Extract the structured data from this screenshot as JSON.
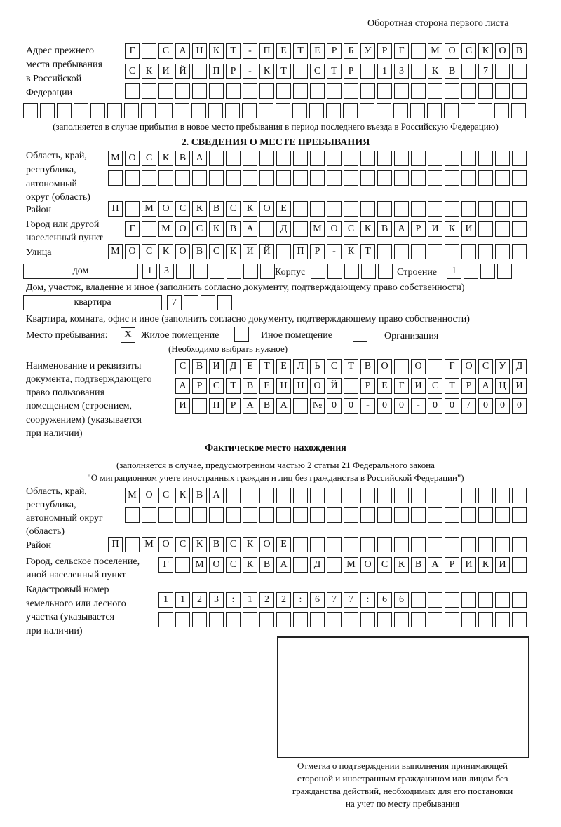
{
  "header": {
    "page_side": "Оборотная сторона первого листа"
  },
  "prev_address": {
    "label": [
      "Адрес прежнего",
      "места пребывания",
      "в Российской",
      "Федерации"
    ],
    "rows": [
      [
        "Г",
        "",
        "С",
        "А",
        "Н",
        "К",
        "Т",
        "-",
        "П",
        "Е",
        "Т",
        "Е",
        "Р",
        "Б",
        "У",
        "Р",
        "Г",
        "",
        "М",
        "О",
        "С",
        "К",
        "О",
        "В"
      ],
      [
        "С",
        "К",
        "И",
        "Й",
        "",
        "П",
        "Р",
        "-",
        "К",
        "Т",
        "",
        "С",
        "Т",
        "Р",
        "",
        "1",
        "3",
        "",
        "К",
        "В",
        "",
        "7",
        "",
        ""
      ],
      [
        "",
        "",
        "",
        "",
        "",
        "",
        "",
        "",
        "",
        "",
        "",
        "",
        "",
        "",
        "",
        "",
        "",
        "",
        "",
        "",
        "",
        "",
        "",
        ""
      ],
      [
        "",
        "",
        "",
        "",
        "",
        "",
        "",
        "",
        "",
        "",
        "",
        "",
        "",
        "",
        "",
        "",
        "",
        "",
        "",
        "",
        "",
        "",
        "",
        "",
        "",
        "",
        "",
        "",
        "",
        ""
      ]
    ],
    "note": "(заполняется в случае прибытия в новое место пребывания в период последнего въезда в Российскую Федерацию)"
  },
  "section2": {
    "title": "2. СВЕДЕНИЯ О МЕСТЕ ПРЕБЫВАНИЯ",
    "region_label": [
      "Область, край,",
      "республика,",
      "автономный",
      "округ (область)"
    ],
    "region_rows": [
      [
        "М",
        "О",
        "С",
        "К",
        "В",
        "А",
        "",
        "",
        "",
        "",
        "",
        "",
        "",
        "",
        "",
        "",
        "",
        "",
        "",
        "",
        "",
        "",
        "",
        "",
        ""
      ],
      [
        "",
        "",
        "",
        "",
        "",
        "",
        "",
        "",
        "",
        "",
        "",
        "",
        "",
        "",
        "",
        "",
        "",
        "",
        "",
        "",
        "",
        "",
        "",
        "",
        ""
      ]
    ],
    "district_label": "Район",
    "district_row": [
      "П",
      "",
      "М",
      "О",
      "С",
      "К",
      "В",
      "С",
      "К",
      "О",
      "Е",
      "",
      "",
      "",
      "",
      "",
      "",
      "",
      "",
      "",
      "",
      "",
      "",
      "",
      ""
    ],
    "city_label": [
      "Город или другой",
      "населенный пункт"
    ],
    "city_row": [
      "Г",
      "",
      "М",
      "О",
      "С",
      "К",
      "В",
      "А",
      "",
      "Д",
      "",
      "М",
      "О",
      "С",
      "К",
      "В",
      "А",
      "Р",
      "И",
      "К",
      "И",
      "",
      "",
      ""
    ],
    "street_label": "Улица",
    "street_row": [
      "М",
      "О",
      "С",
      "К",
      "О",
      "В",
      "С",
      "К",
      "И",
      "Й",
      "",
      "П",
      "Р",
      "-",
      "К",
      "Т",
      "",
      "",
      "",
      "",
      "",
      "",
      "",
      "",
      ""
    ],
    "house_type": "дом",
    "house_row": [
      "1",
      "3",
      "",
      "",
      "",
      "",
      "",
      ""
    ],
    "korpus_label": "Корпус",
    "korpus_row": [
      "",
      "",
      "",
      "",
      ""
    ],
    "building_label": "Строение",
    "building_row": [
      "1",
      "",
      "",
      ""
    ],
    "house_note": "Дом, участок, владение и иное (заполнить согласно документу, подтверждающему право собственности)",
    "apt_type": "квартира",
    "apt_row": [
      "7",
      "",
      "",
      ""
    ],
    "apt_note": "Квартира, комната, офис и иное (заполнить согласно документу, подтверждающему право собственности)",
    "stay_label": "Место пребывания:",
    "stay_options": [
      {
        "mark": "X",
        "label": "Жилое помещение"
      },
      {
        "mark": "",
        "label": "Иное помещение"
      },
      {
        "mark": "",
        "label": "Организация"
      }
    ],
    "stay_note": "(Необходимо выбрать нужное)",
    "doc_label": [
      "Наименование и реквизиты",
      "документа, подтверждающего",
      "право пользования",
      "помещением (строением,",
      "сооружением) (указывается",
      "при наличии)"
    ],
    "doc_rows": [
      [
        "С",
        "В",
        "И",
        "Д",
        "Е",
        "Т",
        "Е",
        "Л",
        "Ь",
        "С",
        "Т",
        "В",
        "О",
        "",
        "О",
        "",
        "Г",
        "О",
        "С",
        "У",
        "Д"
      ],
      [
        "А",
        "Р",
        "С",
        "Т",
        "В",
        "Е",
        "Н",
        "Н",
        "О",
        "Й",
        "",
        "Р",
        "Е",
        "Г",
        "И",
        "С",
        "Т",
        "Р",
        "А",
        "Ц",
        "И"
      ],
      [
        "И",
        "",
        "П",
        "Р",
        "А",
        "В",
        "А",
        "",
        "№",
        "0",
        "0",
        "-",
        "0",
        "0",
        "-",
        "0",
        "0",
        "/",
        "0",
        "0",
        "0"
      ]
    ]
  },
  "actual": {
    "title": "Фактическое место нахождения",
    "note": [
      "(заполняется в случае, предусмотренном частью 2 статьи 21 Федерального закона",
      "\"О миграционном учете иностранных граждан и лиц без гражданства в Российской Федерации\")"
    ],
    "region_label": [
      "Область, край,",
      "республика,",
      "автономный округ",
      "(область)"
    ],
    "region_rows": [
      [
        "М",
        "О",
        "С",
        "К",
        "В",
        "А",
        "",
        "",
        "",
        "",
        "",
        "",
        "",
        "",
        "",
        "",
        "",
        "",
        "",
        "",
        "",
        "",
        "",
        ""
      ],
      [
        "",
        "",
        "",
        "",
        "",
        "",
        "",
        "",
        "",
        "",
        "",
        "",
        "",
        "",
        "",
        "",
        "",
        "",
        "",
        "",
        "",
        "",
        "",
        ""
      ]
    ],
    "district_label": "Район",
    "district_row": [
      "П",
      "",
      "М",
      "О",
      "С",
      "К",
      "В",
      "С",
      "К",
      "О",
      "Е",
      "",
      "",
      "",
      "",
      "",
      "",
      "",
      "",
      "",
      "",
      "",
      "",
      "",
      ""
    ],
    "city_label": [
      "Город, сельское поселение,",
      "иной населенный пункт"
    ],
    "city_row": [
      "Г",
      "",
      "М",
      "О",
      "С",
      "К",
      "В",
      "А",
      "",
      "Д",
      "",
      "М",
      "О",
      "С",
      "К",
      "В",
      "А",
      "Р",
      "И",
      "К",
      "И",
      ""
    ],
    "cadastral_label": [
      "Кадастровый номер",
      "земельного или лесного",
      "участка (указывается",
      "при наличии)"
    ],
    "cadastral_rows": [
      [
        "1",
        "1",
        "2",
        "3",
        ":",
        "1",
        "2",
        "2",
        ":",
        "6",
        "7",
        "7",
        ":",
        "6",
        "6",
        "",
        "",
        "",
        "",
        "",
        "",
        ""
      ],
      [
        "",
        "",
        "",
        "",
        "",
        "",
        "",
        "",
        "",
        "",
        "",
        "",
        "",
        "",
        "",
        "",
        "",
        "",
        "",
        "",
        "",
        ""
      ]
    ]
  },
  "stamp": {
    "caption": [
      "Отметка о подтверждении выполнения принимающей",
      "стороной и иностранным гражданином или лицом без",
      "гражданства действий, необходимых для его постановки",
      "на учет по месту пребывания"
    ]
  }
}
